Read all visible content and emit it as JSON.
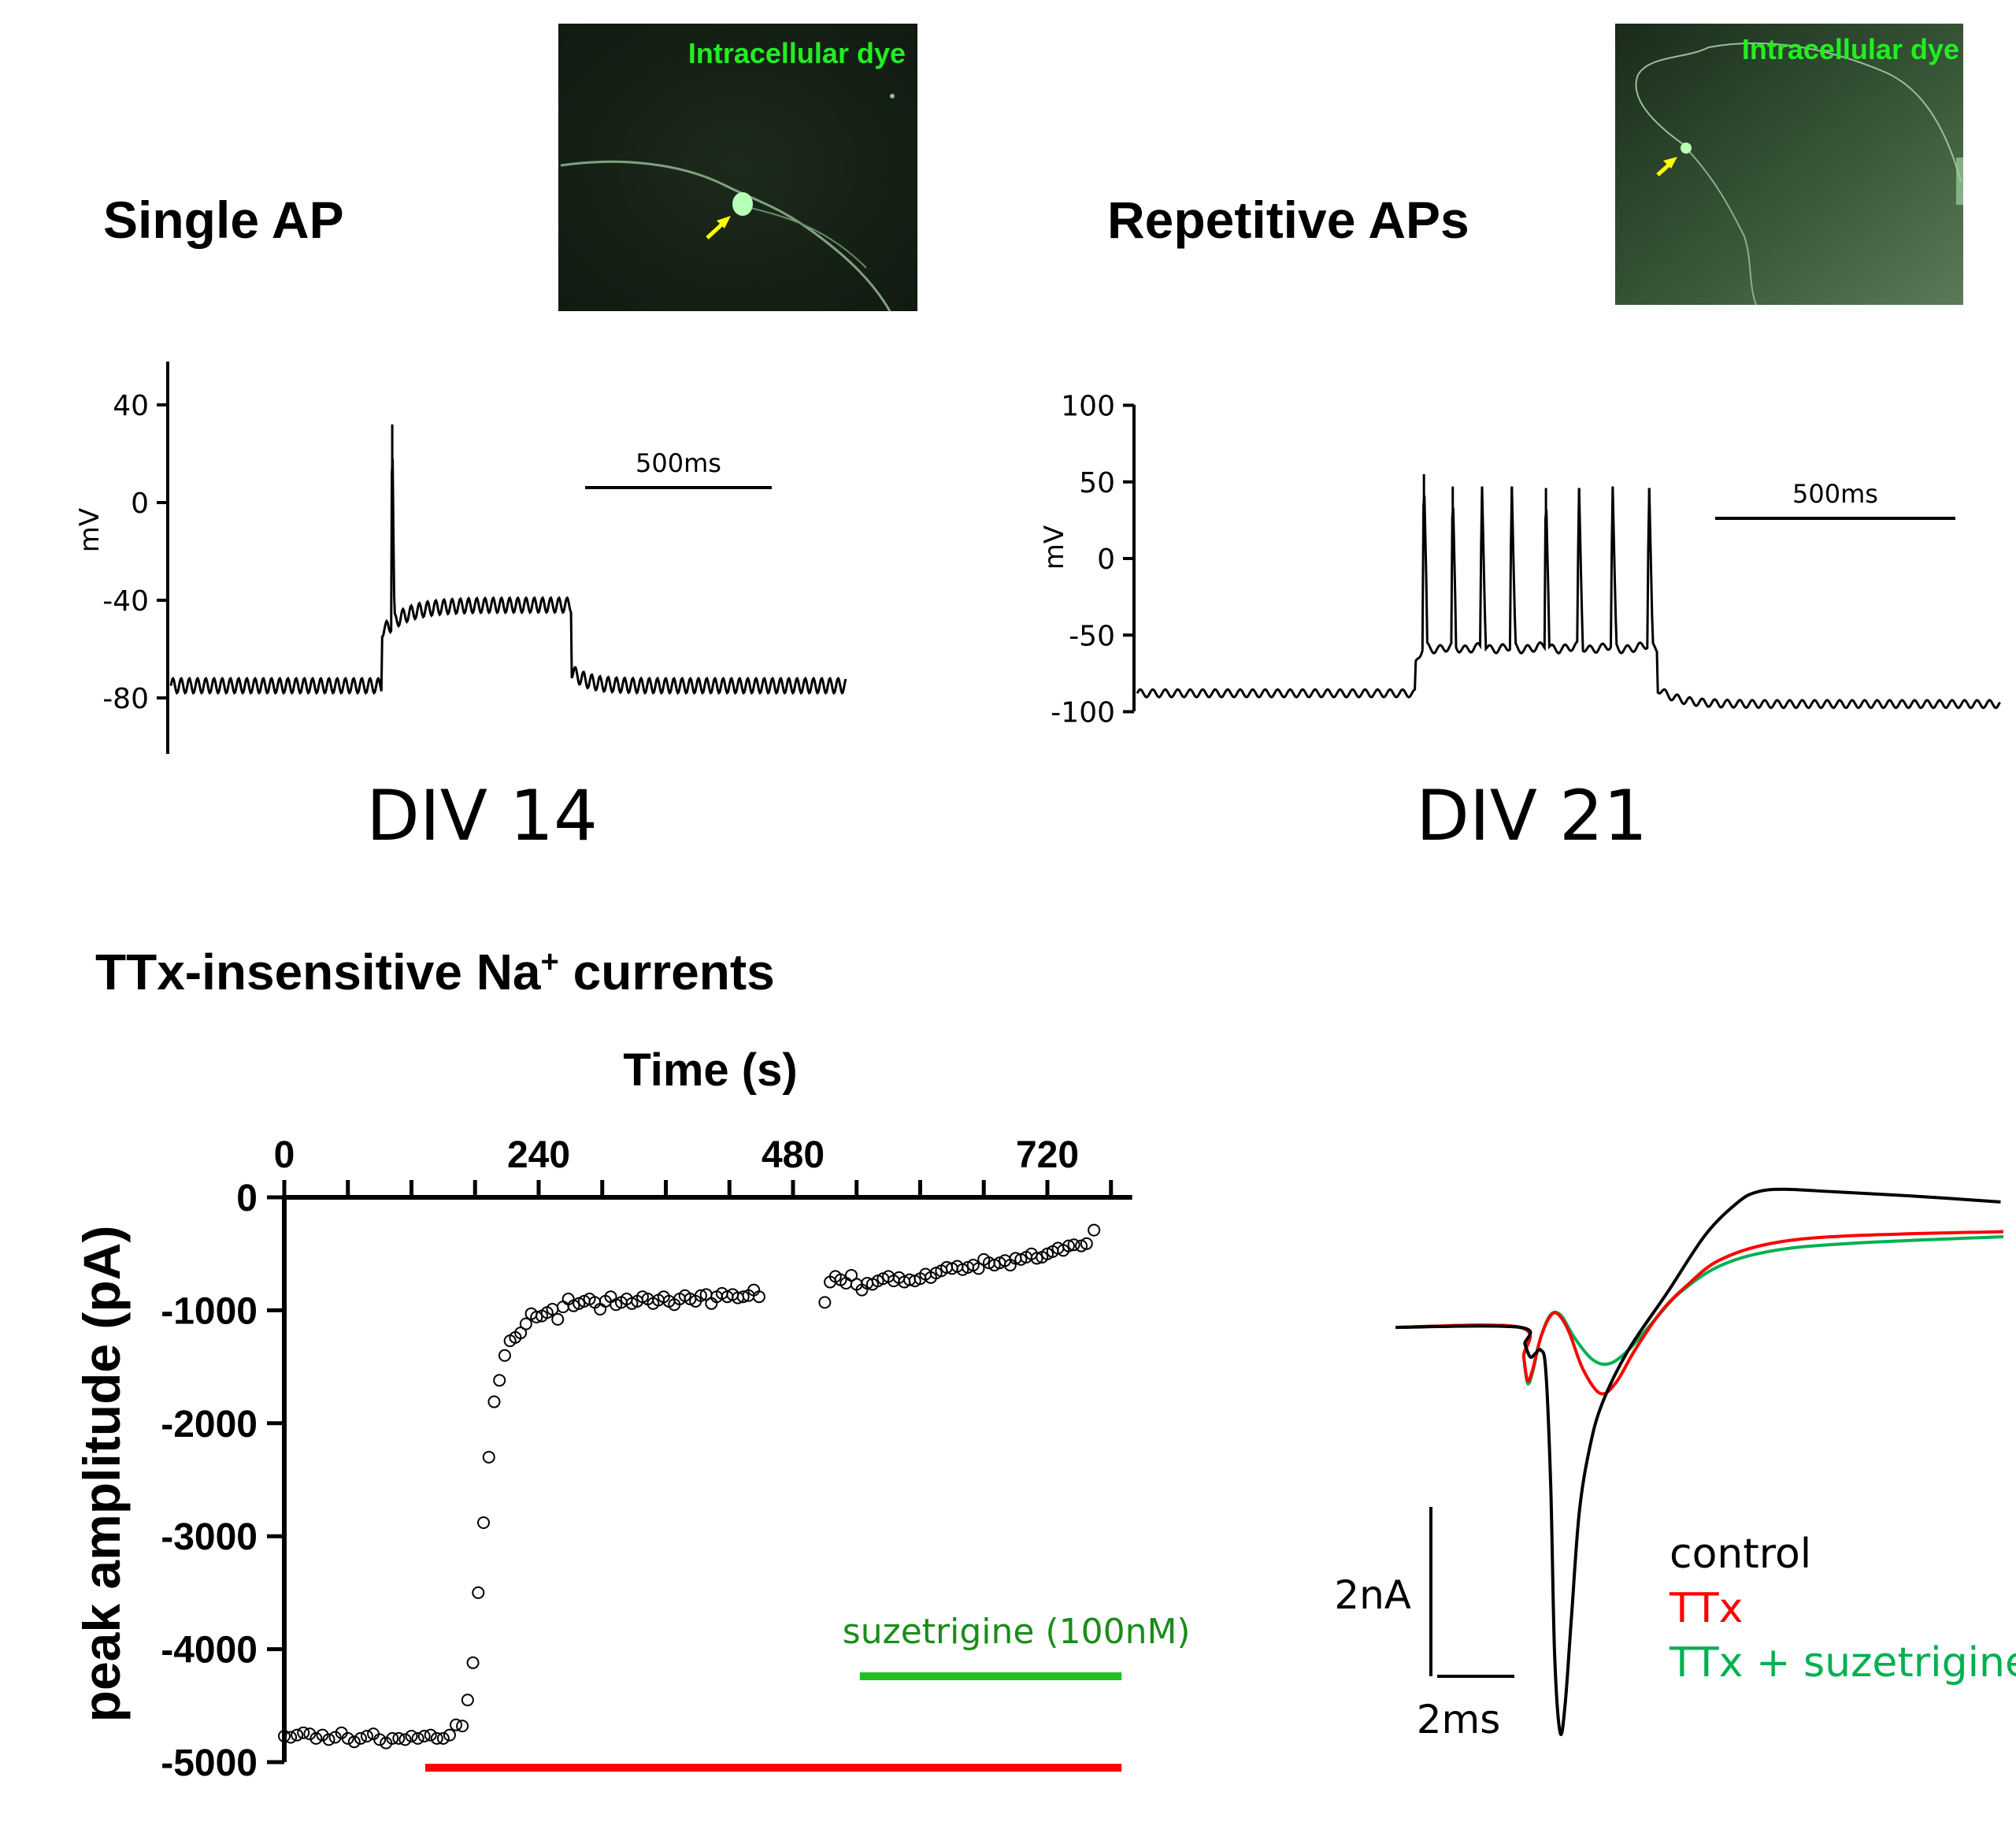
{
  "colors": {
    "black": "#000000",
    "red": "#ff0000",
    "green_trace": "#00b050",
    "green_bar": "#22c022",
    "green_label": "#1a8c1a",
    "dye_text": "#22ee22",
    "arrow": "#ffff00"
  },
  "panel_single": {
    "title": "Single AP",
    "image_label": "Intracellular dye",
    "div_label": "DIV 14",
    "chart_data": {
      "type": "line",
      "ylabel": "mV",
      "yticks": [
        40,
        0,
        -40,
        -80
      ],
      "scalebar_label": "500ms",
      "scalebar_ms": 500,
      "trace": {
        "duration_ms": 1808,
        "baseline_mV": -75,
        "step_on_ms": 565,
        "step_off_ms": 1073,
        "plateau_mV": -42,
        "noise_amp_mV": 3,
        "noise_period_ms": 22,
        "spikes": [
          {
            "t_ms": 593,
            "peak_mV": 32
          }
        ]
      }
    }
  },
  "panel_repetitive": {
    "title": "Repetitive APs",
    "image_label": "Intracellular dye",
    "div_label": "DIV 21",
    "chart_data": {
      "type": "line",
      "ylabel": "mV",
      "yticks": [
        100,
        50,
        0,
        -50,
        -100
      ],
      "scalebar_label": "500ms",
      "scalebar_ms": 500,
      "trace": {
        "duration_ms": 1797,
        "baseline_mV": -88,
        "post_mV": -95,
        "step_on_ms": 579,
        "step_off_ms": 1084,
        "interspike_mV": -62,
        "noise_amp_mV": 2.5,
        "noise_period_ms": 26,
        "spikes": [
          {
            "t_ms": 597,
            "peak_mV": 55
          },
          {
            "t_ms": 657,
            "peak_mV": 47
          },
          {
            "t_ms": 718,
            "peak_mV": 47
          },
          {
            "t_ms": 780,
            "peak_mV": 47
          },
          {
            "t_ms": 851,
            "peak_mV": 46
          },
          {
            "t_ms": 920,
            "peak_mV": 46
          },
          {
            "t_ms": 990,
            "peak_mV": 47
          },
          {
            "t_ms": 1066,
            "peak_mV": 46
          }
        ]
      }
    }
  },
  "panel_ttx": {
    "title": "TTx-insensitive Na",
    "title_sup": "+",
    "title_suffix": " currents",
    "chart_data": {
      "type": "scatter",
      "xlabel": "Time (s)",
      "ylabel": "peak amplitude (pA)",
      "xlim": [
        0,
        800
      ],
      "ylim": [
        -5000,
        0
      ],
      "xticks_labeled": [
        0,
        240,
        480,
        720
      ],
      "xticks_minor_step": 60,
      "yticks": [
        0,
        -1000,
        -2000,
        -3000,
        -4000,
        -5000
      ],
      "points": [
        [
          0,
          -4770
        ],
        [
          6,
          -4780
        ],
        [
          12,
          -4760
        ],
        [
          18,
          -4740
        ],
        [
          24,
          -4750
        ],
        [
          30,
          -4790
        ],
        [
          36,
          -4760
        ],
        [
          42,
          -4800
        ],
        [
          48,
          -4780
        ],
        [
          54,
          -4740
        ],
        [
          60,
          -4790
        ],
        [
          66,
          -4820
        ],
        [
          72,
          -4790
        ],
        [
          78,
          -4770
        ],
        [
          84,
          -4750
        ],
        [
          90,
          -4800
        ],
        [
          96,
          -4830
        ],
        [
          102,
          -4790
        ],
        [
          108,
          -4790
        ],
        [
          114,
          -4800
        ],
        [
          120,
          -4770
        ],
        [
          126,
          -4790
        ],
        [
          132,
          -4770
        ],
        [
          138,
          -4760
        ],
        [
          144,
          -4790
        ],
        [
          150,
          -4790
        ],
        [
          156,
          -4760
        ],
        [
          162,
          -4670
        ],
        [
          168,
          -4680
        ],
        [
          173,
          -4450
        ],
        [
          178,
          -4120
        ],
        [
          183,
          -3500
        ],
        [
          188,
          -2880
        ],
        [
          193,
          -2300
        ],
        [
          198,
          -1810
        ],
        [
          203,
          -1620
        ],
        [
          208,
          -1400
        ],
        [
          213,
          -1270
        ],
        [
          218,
          -1240
        ],
        [
          223,
          -1200
        ],
        [
          228,
          -1120
        ],
        [
          233,
          -1030
        ],
        [
          238,
          -1060
        ],
        [
          243,
          -1050
        ],
        [
          248,
          -1020
        ],
        [
          253,
          -990
        ],
        [
          258,
          -1080
        ],
        [
          263,
          -970
        ],
        [
          268,
          -900
        ],
        [
          273,
          -960
        ],
        [
          278,
          -940
        ],
        [
          283,
          -920
        ],
        [
          288,
          -900
        ],
        [
          293,
          -930
        ],
        [
          298,
          -990
        ],
        [
          303,
          -920
        ],
        [
          308,
          -880
        ],
        [
          313,
          -950
        ],
        [
          318,
          -930
        ],
        [
          323,
          -900
        ],
        [
          328,
          -940
        ],
        [
          333,
          -920
        ],
        [
          338,
          -880
        ],
        [
          343,
          -900
        ],
        [
          348,
          -940
        ],
        [
          353,
          -910
        ],
        [
          358,
          -880
        ],
        [
          363,
          -920
        ],
        [
          368,
          -950
        ],
        [
          373,
          -900
        ],
        [
          378,
          -870
        ],
        [
          383,
          -900
        ],
        [
          388,
          -920
        ],
        [
          393,
          -870
        ],
        [
          398,
          -860
        ],
        [
          403,
          -940
        ],
        [
          408,
          -880
        ],
        [
          413,
          -850
        ],
        [
          418,
          -880
        ],
        [
          423,
          -860
        ],
        [
          428,
          -890
        ],
        [
          433,
          -880
        ],
        [
          438,
          -870
        ],
        [
          443,
          -820
        ],
        [
          448,
          -880
        ],
        [
          510,
          -930
        ],
        [
          515,
          -750
        ],
        [
          520,
          -700
        ],
        [
          525,
          -730
        ],
        [
          530,
          -760
        ],
        [
          535,
          -690
        ],
        [
          540,
          -770
        ],
        [
          545,
          -820
        ],
        [
          550,
          -760
        ],
        [
          555,
          -770
        ],
        [
          560,
          -740
        ],
        [
          565,
          -720
        ],
        [
          570,
          -700
        ],
        [
          575,
          -740
        ],
        [
          580,
          -710
        ],
        [
          585,
          -750
        ],
        [
          590,
          -730
        ],
        [
          595,
          -740
        ],
        [
          600,
          -720
        ],
        [
          605,
          -680
        ],
        [
          610,
          -710
        ],
        [
          615,
          -670
        ],
        [
          620,
          -650
        ],
        [
          625,
          -620
        ],
        [
          630,
          -630
        ],
        [
          635,
          -610
        ],
        [
          640,
          -640
        ],
        [
          645,
          -620
        ],
        [
          650,
          -600
        ],
        [
          655,
          -630
        ],
        [
          660,
          -550
        ],
        [
          665,
          -580
        ],
        [
          670,
          -600
        ],
        [
          675,
          -580
        ],
        [
          680,
          -560
        ],
        [
          685,
          -600
        ],
        [
          690,
          -540
        ],
        [
          695,
          -550
        ],
        [
          700,
          -530
        ],
        [
          705,
          -500
        ],
        [
          710,
          -540
        ],
        [
          715,
          -530
        ],
        [
          720,
          -500
        ],
        [
          725,
          -480
        ],
        [
          730,
          -450
        ],
        [
          735,
          -470
        ],
        [
          740,
          -430
        ],
        [
          745,
          -420
        ],
        [
          752,
          -430
        ],
        [
          757,
          -410
        ],
        [
          764,
          -290
        ]
      ],
      "bars": [
        {
          "label": "",
          "color": "#ff0000",
          "start_s": 133,
          "end_s": 790,
          "level_pA": -5050
        },
        {
          "label": "suzetrigine (100nM)",
          "color": "#22c022",
          "start_s": 543,
          "end_s": 790,
          "level_pA": -4240
        }
      ]
    }
  },
  "panel_traces": {
    "chart_data": {
      "type": "line",
      "scalebar_y_label": "2nA",
      "scalebar_x_label": "2ms",
      "scalebar_nA": 2,
      "scalebar_ms": 2,
      "series": [
        {
          "name": "control",
          "color": "#000000",
          "t_ms": [
            -3.22,
            0,
            0.13,
            0.27,
            0.4,
            0.54,
            0.67,
            0.8,
            0.9,
            1.04,
            1.17,
            1.34,
            1.54,
            1.81,
            2.14,
            2.81,
            3.82,
            4.82,
            5.66,
            6.16,
            6.83,
            8.17,
            10.18,
            12.46
          ],
          "nA": [
            0,
            0,
            -0.2,
            -0.35,
            -0.31,
            -0.27,
            -0.5,
            -1.88,
            -3.86,
            -4.78,
            -4.47,
            -3.4,
            -2.18,
            -1.42,
            -0.89,
            -0.27,
            0.41,
            1.1,
            1.48,
            1.6,
            1.63,
            1.6,
            1.55,
            1.48
          ]
        },
        {
          "name": "TTx",
          "color": "#ff0000",
          "t_ms": [
            -3.22,
            0,
            0.1,
            0.2,
            0.33,
            0.54,
            0.8,
            1.0,
            1.27,
            1.64,
            2.08,
            2.48,
            2.98,
            3.65,
            4.32,
            5.16,
            6.5,
            8.51,
            12.53
          ],
          "nA": [
            0,
            0,
            -0.35,
            -0.63,
            -0.5,
            -0.12,
            0.14,
            0.15,
            -0.05,
            -0.5,
            -0.78,
            -0.66,
            -0.27,
            0.18,
            0.49,
            0.79,
            0.99,
            1.08,
            1.13
          ]
        },
        {
          "name": "TTx + suzetrigine",
          "color": "#00b050",
          "t_ms": [
            -3.22,
            0,
            0.1,
            0.2,
            0.33,
            0.54,
            0.8,
            1.07,
            1.41,
            1.88,
            2.31,
            2.81,
            3.48,
            4.15,
            5.16,
            6.5,
            8.51,
            12.53
          ],
          "nA": [
            0,
            0,
            -0.35,
            -0.66,
            -0.53,
            -0.12,
            0.15,
            0.14,
            -0.12,
            -0.38,
            -0.43,
            -0.27,
            0.08,
            0.41,
            0.72,
            0.9,
            0.99,
            1.07
          ]
        }
      ]
    }
  }
}
